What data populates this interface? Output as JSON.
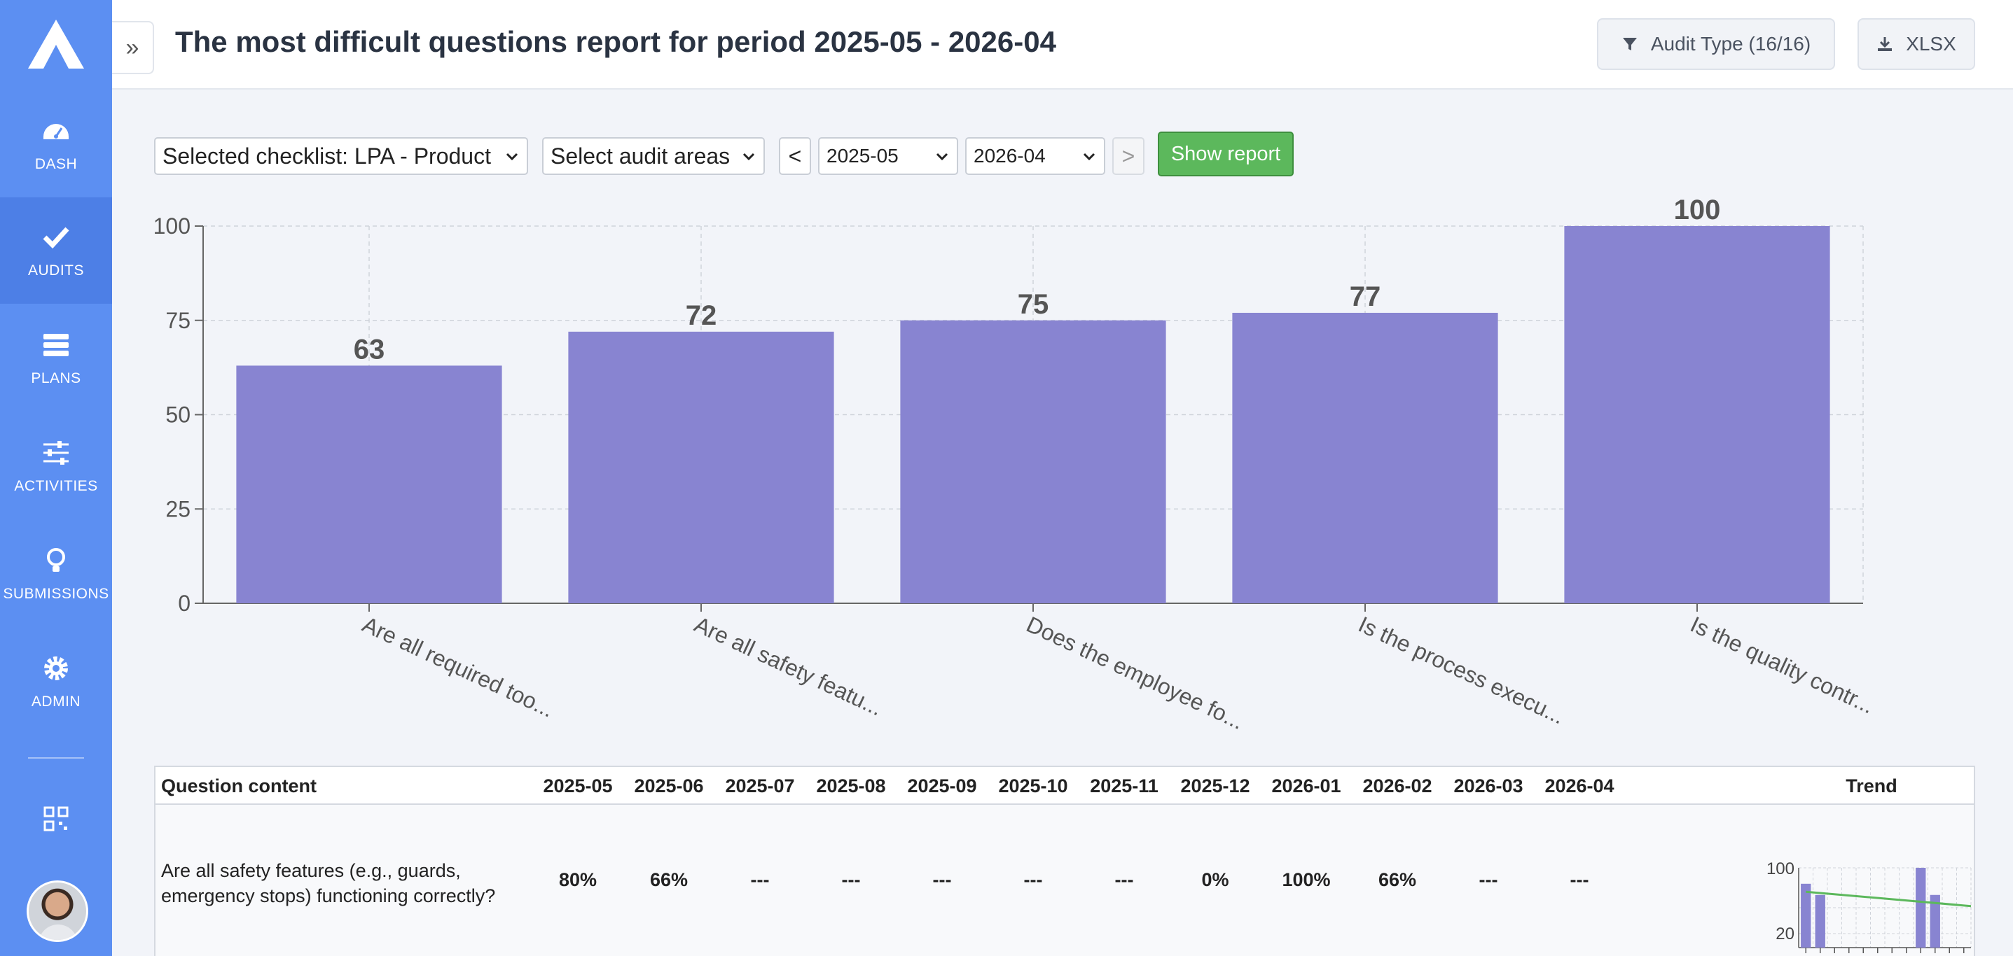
{
  "header": {
    "title": "The most difficult questions report for period 2025-05 - 2026-04",
    "audit_type_label": "Audit Type (16/16)",
    "export_label": "XLSX"
  },
  "sidebar": {
    "items": [
      {
        "label": "DASH",
        "icon": "dashboard-icon"
      },
      {
        "label": "AUDITS",
        "icon": "check-icon",
        "active": true
      },
      {
        "label": "PLANS",
        "icon": "list-icon"
      },
      {
        "label": "ACTIVITIES",
        "icon": "sliders-icon"
      },
      {
        "label": "SUBMISSIONS",
        "icon": "lightbulb-icon"
      },
      {
        "label": "ADMIN",
        "icon": "gear-icon"
      }
    ]
  },
  "controls": {
    "checklist": "Selected checklist: LPA - Product",
    "areas": "Select audit areas",
    "prev": "<",
    "from": "2025-05",
    "to": "2026-04",
    "next": ">",
    "show_report": "Show report"
  },
  "chart_data": {
    "type": "bar",
    "categories": [
      "Are all required too...",
      "Are all safety featu...",
      "Does the employee fo...",
      "Is the process execu...",
      "Is the quality contr..."
    ],
    "values": [
      63,
      72,
      75,
      77,
      100
    ],
    "ylim": [
      0,
      100
    ],
    "yticks": [
      0,
      25,
      50,
      75,
      100
    ],
    "grid": true,
    "color": "#8884d1"
  },
  "table": {
    "headers": [
      "Question content",
      "2025-05",
      "2025-06",
      "2025-07",
      "2025-08",
      "2025-09",
      "2025-10",
      "2025-11",
      "2025-12",
      "2026-01",
      "2026-02",
      "2026-03",
      "2026-04",
      "Trend"
    ],
    "rows": [
      {
        "question": "Are all safety features (e.g., guards, emergency stops) functioning correctly?",
        "values": [
          "80%",
          "66%",
          "---",
          "---",
          "---",
          "---",
          "---",
          "0%",
          "100%",
          "66%",
          "---",
          "---"
        ],
        "trend": {
          "values": [
            80,
            66,
            0,
            0,
            0,
            0,
            0,
            0,
            100,
            66,
            0,
            0
          ],
          "yticks": [
            "100",
            "20"
          ],
          "trend_color": "#5cb85c"
        }
      }
    ]
  }
}
